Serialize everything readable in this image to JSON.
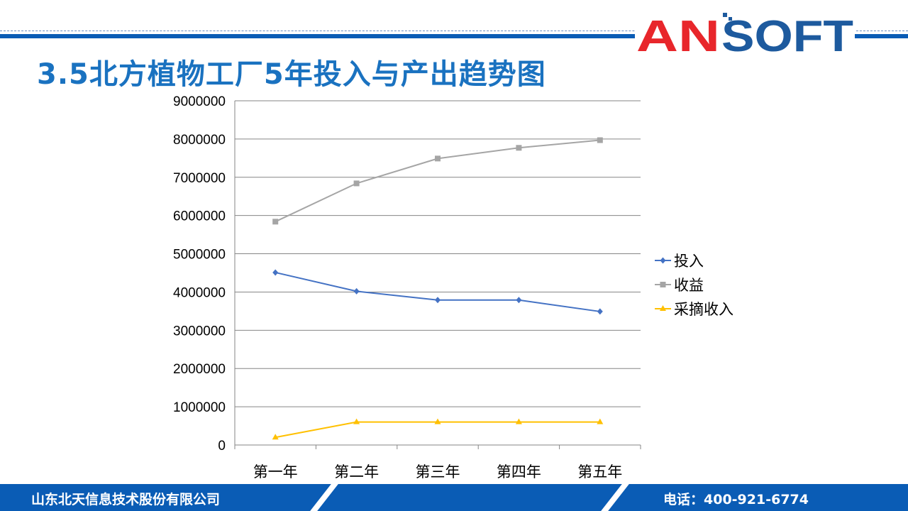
{
  "slide": {
    "title": "3.5北方植物工厂5年投入与产出趋势图",
    "logo_text": "ANSOFT",
    "footer": {
      "company": "山东北天信息技术股份有限公司",
      "phone": "电话：400-921-6774"
    }
  },
  "colors": {
    "brand_blue": "#0a5cb5",
    "logo_red": "#e8262b",
    "logo_blue": "#1d5a9e"
  },
  "chart_data": {
    "type": "line",
    "title": "",
    "categories": [
      "第一年",
      "第二年",
      "第三年",
      "第四年",
      "第五年"
    ],
    "ylim": [
      0,
      9000000
    ],
    "yticks": [
      "0",
      "1000000",
      "2000000",
      "3000000",
      "4000000",
      "5000000",
      "6000000",
      "7000000",
      "8000000",
      "9000000"
    ],
    "grid": true,
    "legend": "right",
    "series": [
      {
        "name": "投入",
        "color": "#4472c4",
        "marker": "diamond",
        "values": [
          4510000,
          4020000,
          3790000,
          3790000,
          3490000
        ]
      },
      {
        "name": "收益",
        "color": "#a5a5a5",
        "marker": "square",
        "values": [
          5840000,
          6840000,
          7490000,
          7770000,
          7970000
        ]
      },
      {
        "name": "采摘收入",
        "color": "#ffc000",
        "marker": "triangle",
        "values": [
          200000,
          600000,
          600000,
          600000,
          600000
        ]
      }
    ]
  }
}
